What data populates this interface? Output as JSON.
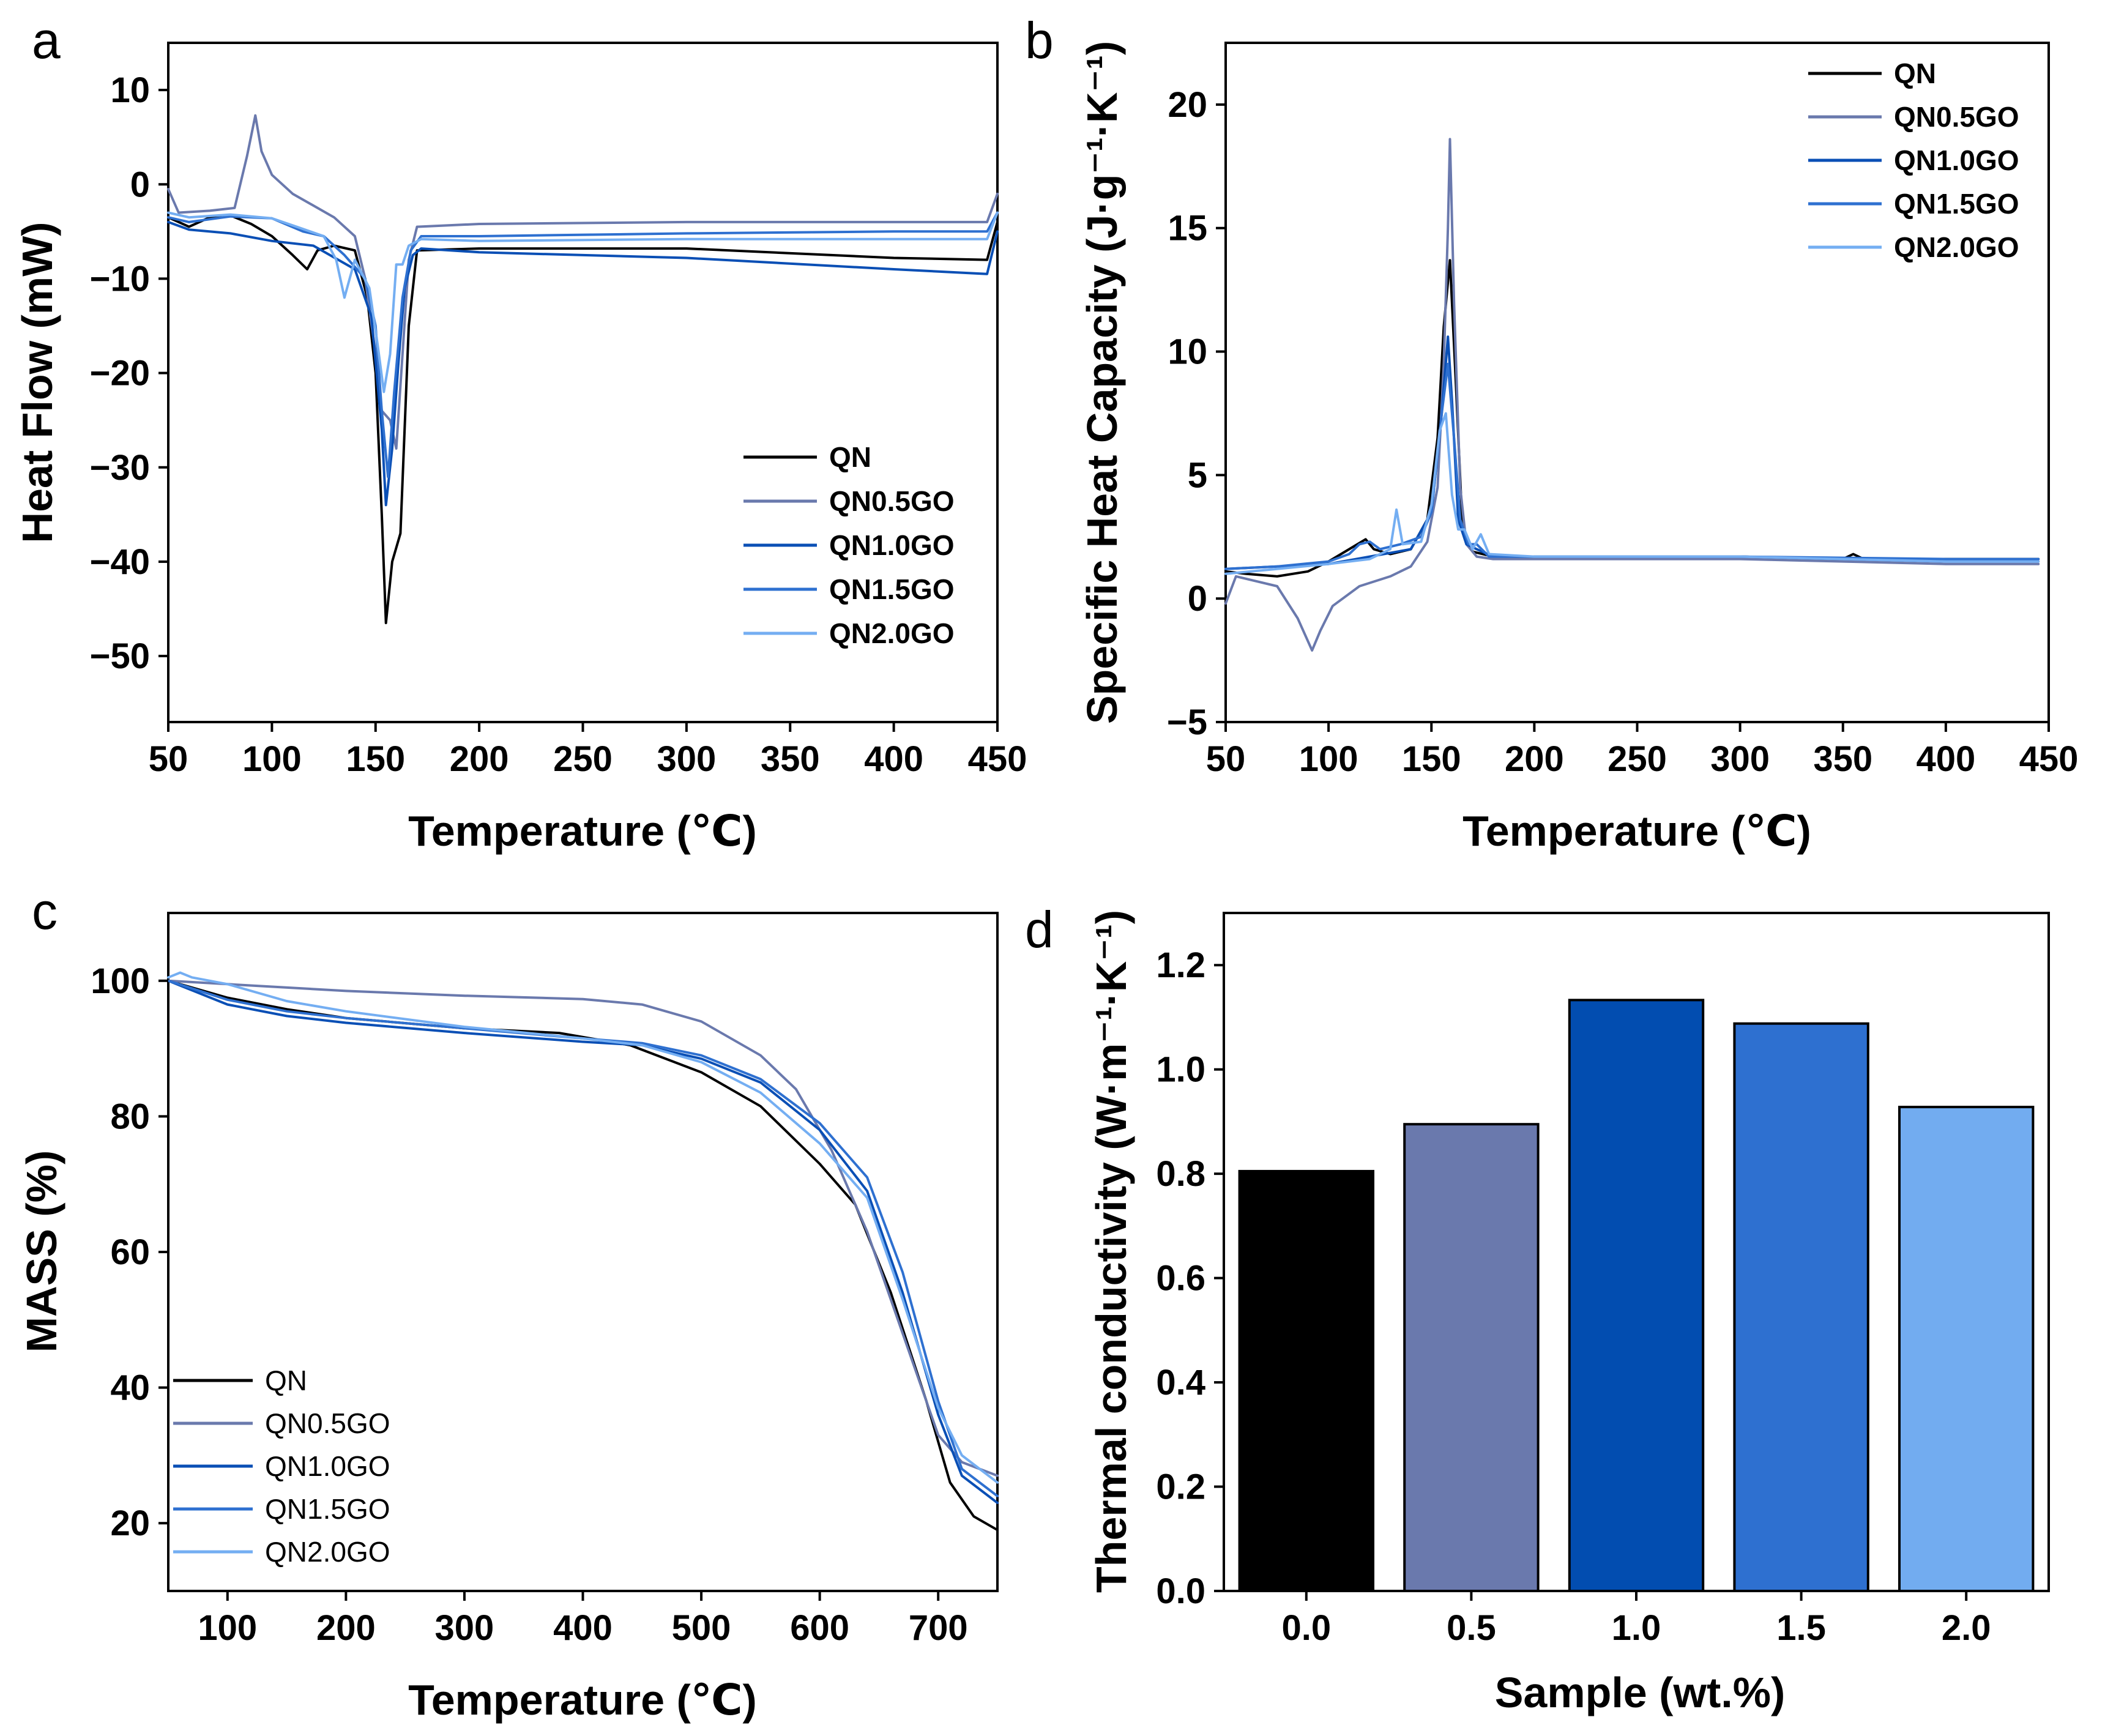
{
  "colors": {
    "QN": "#000000",
    "QN0.5GO": "#6a79ad",
    "QN1.0GO": "#0a4fb5",
    "QN1.5GO": "#2e70d0",
    "QN2.0GO": "#74aef2"
  },
  "chart_data": [
    {
      "panel": "a",
      "type": "line",
      "xlabel": "Temperature (℃)",
      "ylabel": "Heat Flow (mW)",
      "xlim": [
        50,
        450
      ],
      "ylim": [
        -57,
        15
      ],
      "xticks": [
        "50",
        "100",
        "150",
        "200",
        "250",
        "300",
        "350",
        "400",
        "450"
      ],
      "yticks": [
        "10",
        "0",
        "−10",
        "−20",
        "−30",
        "−40",
        "−50"
      ],
      "legend": {
        "position": "lower-right",
        "style": "bold"
      },
      "series": [
        {
          "name": "QN",
          "x": [
            50,
            60,
            70,
            80,
            90,
            100,
            110,
            117,
            122,
            130,
            140,
            146,
            150,
            153,
            155,
            158,
            162,
            166,
            170,
            200,
            300,
            400,
            445,
            450
          ],
          "y": [
            -3.5,
            -4.5,
            -3.5,
            -3.3,
            -4.2,
            -5.5,
            -7.5,
            -9,
            -7,
            -6.5,
            -7,
            -12,
            -20,
            -35,
            -46.5,
            -40,
            -37,
            -15,
            -7,
            -6.8,
            -6.8,
            -7.8,
            -8,
            -4
          ]
        },
        {
          "name": "QN0.5GO",
          "x": [
            50,
            55,
            70,
            82,
            88,
            92,
            95,
            100,
            110,
            130,
            140,
            145,
            150,
            153,
            157,
            160,
            163,
            166,
            170,
            200,
            300,
            400,
            445,
            450
          ],
          "y": [
            -0.5,
            -3,
            -2.8,
            -2.5,
            3,
            7.3,
            3.5,
            1,
            -1,
            -3.5,
            -5.5,
            -10,
            -18,
            -24,
            -25,
            -28,
            -18,
            -8,
            -4.5,
            -4.2,
            -4,
            -4,
            -4,
            -1
          ]
        },
        {
          "name": "QN1.0GO",
          "x": [
            50,
            60,
            80,
            100,
            120,
            140,
            148,
            153,
            155,
            158,
            161,
            164,
            168,
            172,
            200,
            300,
            400,
            445,
            450
          ],
          "y": [
            -4,
            -4.8,
            -5.2,
            -6,
            -6.5,
            -9,
            -14,
            -26,
            -34,
            -28,
            -19,
            -11,
            -7.5,
            -6.8,
            -7.2,
            -7.8,
            -9,
            -9.5,
            -5
          ]
        },
        {
          "name": "QN1.5GO",
          "x": [
            50,
            60,
            80,
            100,
            115,
            125,
            135,
            145,
            150,
            153,
            156,
            159,
            163,
            167,
            172,
            200,
            300,
            400,
            445,
            450
          ],
          "y": [
            -3.5,
            -4,
            -3.4,
            -3.6,
            -5,
            -5.5,
            -7.5,
            -10,
            -15,
            -24,
            -31,
            -22,
            -12,
            -7,
            -5.5,
            -5.5,
            -5.2,
            -5,
            -5,
            -3
          ]
        },
        {
          "name": "QN2.0GO",
          "x": [
            50,
            60,
            80,
            100,
            112,
            125,
            131,
            135,
            140,
            147,
            151,
            154,
            157,
            160,
            163,
            166,
            172,
            200,
            300,
            400,
            445,
            450
          ],
          "y": [
            -3,
            -3.5,
            -3.2,
            -3.6,
            -4.5,
            -5.5,
            -8,
            -12,
            -8,
            -11,
            -17,
            -22,
            -18,
            -8.5,
            -8.5,
            -6.5,
            -5.8,
            -6,
            -5.8,
            -5.8,
            -5.8,
            -3
          ]
        }
      ]
    },
    {
      "panel": "b",
      "type": "line",
      "xlabel": "Temperature (℃)",
      "ylabel": "Specific Heat Capacity (J·g⁻¹·K⁻¹)",
      "xlim": [
        50,
        450
      ],
      "ylim": [
        -5,
        22.5
      ],
      "xticks": [
        "50",
        "100",
        "150",
        "200",
        "250",
        "300",
        "350",
        "400",
        "450"
      ],
      "yticks": [
        "20",
        "15",
        "10",
        "5",
        "0",
        "−5"
      ],
      "legend": {
        "position": "top-right",
        "style": "bold"
      },
      "series": [
        {
          "name": "QN",
          "x": [
            50,
            60,
            75,
            90,
            100,
            110,
            118,
            122,
            130,
            140,
            148,
            153,
            156,
            159,
            162,
            165,
            170,
            180,
            200,
            300,
            350,
            355,
            360,
            400,
            445
          ],
          "y": [
            1.1,
            1.0,
            0.9,
            1.1,
            1.5,
            2.0,
            2.4,
            2.0,
            1.8,
            2.0,
            3.2,
            6.5,
            11,
            13.7,
            8.5,
            3.0,
            1.9,
            1.7,
            1.7,
            1.7,
            1.6,
            1.8,
            1.6,
            1.6,
            1.6
          ]
        },
        {
          "name": "QN0.5GO",
          "x": [
            50,
            55,
            65,
            75,
            85,
            92,
            96,
            102,
            115,
            130,
            140,
            148,
            153,
            156,
            158,
            159,
            161,
            164,
            167,
            172,
            180,
            200,
            300,
            400,
            445
          ],
          "y": [
            -0.2,
            0.9,
            0.7,
            0.5,
            -0.8,
            -2.1,
            -1.3,
            -0.3,
            0.5,
            0.9,
            1.3,
            2.3,
            4.5,
            9.5,
            15,
            18.6,
            12,
            4.5,
            2.2,
            1.7,
            1.6,
            1.6,
            1.6,
            1.4,
            1.4
          ]
        },
        {
          "name": "QN1.0GO",
          "x": [
            50,
            75,
            100,
            120,
            140,
            150,
            155,
            158,
            160,
            163,
            167,
            172,
            180,
            200,
            300,
            400,
            445
          ],
          "y": [
            1.2,
            1.3,
            1.4,
            1.7,
            2.0,
            3.5,
            7.5,
            10.6,
            8,
            3.2,
            2.2,
            2.0,
            1.7,
            1.7,
            1.7,
            1.5,
            1.5
          ]
        },
        {
          "name": "QN1.5GO",
          "x": [
            50,
            75,
            100,
            110,
            115,
            120,
            125,
            135,
            145,
            150,
            155,
            158,
            161,
            164,
            168,
            172,
            178,
            200,
            300,
            400,
            445
          ],
          "y": [
            1.2,
            1.3,
            1.5,
            1.8,
            2.2,
            2.3,
            2.0,
            2.2,
            2.5,
            3.5,
            7.5,
            9.5,
            6.5,
            3.2,
            2.2,
            2.2,
            1.7,
            1.7,
            1.7,
            1.6,
            1.6
          ]
        },
        {
          "name": "QN2.0GO",
          "x": [
            50,
            75,
            100,
            120,
            130,
            133,
            136,
            145,
            150,
            154,
            157,
            160,
            163,
            166,
            170,
            174,
            178,
            200,
            300,
            400,
            445
          ],
          "y": [
            1.0,
            1.2,
            1.4,
            1.6,
            2.0,
            3.6,
            2.2,
            2.3,
            3.8,
            6.8,
            7.5,
            4.2,
            2.8,
            2.8,
            2.0,
            2.6,
            1.8,
            1.7,
            1.7,
            1.5,
            1.5
          ]
        }
      ]
    },
    {
      "panel": "c",
      "type": "line",
      "xlabel": "Temperature (℃)",
      "ylabel": "MASS (%)",
      "xlim": [
        50,
        750
      ],
      "ylim": [
        10,
        110
      ],
      "xticks": [
        "100",
        "200",
        "300",
        "400",
        "500",
        "600",
        "700"
      ],
      "yticks": [
        "100",
        "80",
        "60",
        "40",
        "20"
      ],
      "legend": {
        "position": "lower-left",
        "style": "plain"
      },
      "series": [
        {
          "name": "QN",
          "x": [
            50,
            100,
            150,
            200,
            300,
            380,
            440,
            500,
            550,
            600,
            630,
            660,
            690,
            710,
            730,
            750
          ],
          "y": [
            100,
            97.5,
            95.8,
            94.5,
            93,
            92.3,
            90.5,
            86.5,
            81.5,
            73,
            67,
            54,
            38,
            26,
            21,
            19
          ]
        },
        {
          "name": "QN0.5GO",
          "x": [
            50,
            100,
            200,
            300,
            400,
            450,
            500,
            550,
            580,
            610,
            640,
            670,
            700,
            720,
            750
          ],
          "y": [
            100,
            99.5,
            98.5,
            97.8,
            97.3,
            96.5,
            94,
            89,
            84,
            75,
            63,
            48,
            33,
            29,
            27
          ]
        },
        {
          "name": "QN1.0GO",
          "x": [
            50,
            100,
            150,
            200,
            300,
            400,
            450,
            500,
            550,
            600,
            640,
            670,
            700,
            720,
            750
          ],
          "y": [
            100,
            96.5,
            94.8,
            93.8,
            92.3,
            91,
            90.5,
            88.5,
            85,
            78,
            69,
            54,
            36,
            27,
            23
          ]
        },
        {
          "name": "QN1.5GO",
          "x": [
            50,
            100,
            150,
            200,
            300,
            400,
            450,
            500,
            550,
            600,
            640,
            670,
            700,
            720,
            750
          ],
          "y": [
            100,
            97.2,
            95.5,
            94.5,
            93,
            91.5,
            90.8,
            89,
            85.5,
            79,
            71,
            57,
            38,
            28,
            24
          ]
        },
        {
          "name": "QN2.0GO",
          "x": [
            50,
            60,
            70,
            100,
            150,
            200,
            300,
            400,
            450,
            500,
            550,
            600,
            640,
            670,
            700,
            720,
            750
          ],
          "y": [
            100.5,
            101.2,
            100.5,
            99.5,
            97,
            95.5,
            93.2,
            91.5,
            90.5,
            88,
            83.5,
            76,
            68,
            53,
            37,
            30,
            26
          ]
        }
      ]
    },
    {
      "panel": "d",
      "type": "bar",
      "xlabel": "Sample (wt.%)",
      "ylabel": "Thermal conductivity (W·m⁻¹·K⁻¹)",
      "ylim": [
        0,
        1.3
      ],
      "yticks": [
        "0.0",
        "0.2",
        "0.4",
        "0.6",
        "0.8",
        "1.0",
        "1.2"
      ],
      "categories": [
        "0.0",
        "0.5",
        "1.0",
        "1.5",
        "2.0"
      ],
      "values": [
        0.805,
        0.895,
        1.133,
        1.088,
        0.928
      ],
      "bar_colors": [
        "#000000",
        "#6a79ad",
        "#024db0",
        "#2e70d0",
        "#72acf0"
      ]
    }
  ]
}
